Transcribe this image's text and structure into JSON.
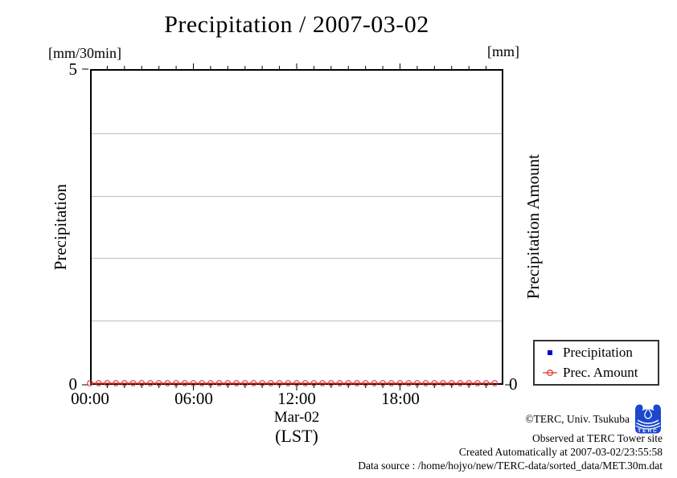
{
  "title": "Precipitation / 2007-03-02",
  "y_left": {
    "unit": "[mm/30min]",
    "axis_label": "Precipitation",
    "top_tick": "5",
    "bottom_tick": "0"
  },
  "y_right": {
    "unit": "[mm]",
    "axis_label": "Precipitation Amount",
    "bottom_tick": "0"
  },
  "x_axis": {
    "tick_labels": [
      "00:00",
      "06:00",
      "12:00",
      "18:00"
    ],
    "date_label": "Mar-02",
    "timezone_label": "(LST)"
  },
  "legend": {
    "items": [
      {
        "label": "Precipitation",
        "marker": "blue-filled-square",
        "color": "#0000dd"
      },
      {
        "label": "Prec. Amount",
        "marker": "red-open-circle",
        "color": "#e03434"
      }
    ]
  },
  "footer": {
    "copyright": "©TERC, Univ. Tsukuba",
    "observed": "Observed at TERC Tower site",
    "created": "Created Automatically at 2007-03-02/23:55:58",
    "data_source": "Data source : /home/hojyo/new/TERC-data/sorted_data/MET.30m.dat",
    "logo_text": "TERC"
  },
  "chart_data": {
    "type": "line",
    "title": "Precipitation / 2007-03-02",
    "xlabel": "Mar-02 (LST)",
    "ylabel_left": "Precipitation [mm/30min]",
    "ylabel_right": "Precipitation Amount [mm]",
    "ylim_left": [
      0,
      5
    ],
    "x_hours_range": [
      0,
      24
    ],
    "x_tick_hours": [
      0,
      6,
      12,
      18
    ],
    "minor_tick_every_hours": 1,
    "major_tick_every_hours": 6,
    "grid_values_left": [
      1,
      2,
      3,
      4
    ],
    "grid": true,
    "legend_position": "outside-right-bottom",
    "x": [
      "00:00",
      "00:30",
      "01:00",
      "01:30",
      "02:00",
      "02:30",
      "03:00",
      "03:30",
      "04:00",
      "04:30",
      "05:00",
      "05:30",
      "06:00",
      "06:30",
      "07:00",
      "07:30",
      "08:00",
      "08:30",
      "09:00",
      "09:30",
      "10:00",
      "10:30",
      "11:00",
      "11:30",
      "12:00",
      "12:30",
      "13:00",
      "13:30",
      "14:00",
      "14:30",
      "15:00",
      "15:30",
      "16:00",
      "16:30",
      "17:00",
      "17:30",
      "18:00",
      "18:30",
      "19:00",
      "19:30",
      "20:00",
      "20:30",
      "21:00",
      "21:30",
      "22:00",
      "22:30",
      "23:00",
      "23:30"
    ],
    "series": [
      {
        "name": "Precipitation",
        "axis": "left",
        "marker": "filled-square",
        "color": "#0000dd",
        "values": [
          0,
          0,
          0,
          0,
          0,
          0,
          0,
          0,
          0,
          0,
          0,
          0,
          0,
          0,
          0,
          0,
          0,
          0,
          0,
          0,
          0,
          0,
          0,
          0,
          0,
          0,
          0,
          0,
          0,
          0,
          0,
          0,
          0,
          0,
          0,
          0,
          0,
          0,
          0,
          0,
          0,
          0,
          0,
          0,
          0,
          0,
          0,
          0
        ]
      },
      {
        "name": "Prec. Amount",
        "axis": "right",
        "marker": "open-circle",
        "color": "#e03434",
        "values": [
          0,
          0,
          0,
          0,
          0,
          0,
          0,
          0,
          0,
          0,
          0,
          0,
          0,
          0,
          0,
          0,
          0,
          0,
          0,
          0,
          0,
          0,
          0,
          0,
          0,
          0,
          0,
          0,
          0,
          0,
          0,
          0,
          0,
          0,
          0,
          0,
          0,
          0,
          0,
          0,
          0,
          0,
          0,
          0,
          0,
          0,
          0,
          0
        ]
      }
    ]
  }
}
